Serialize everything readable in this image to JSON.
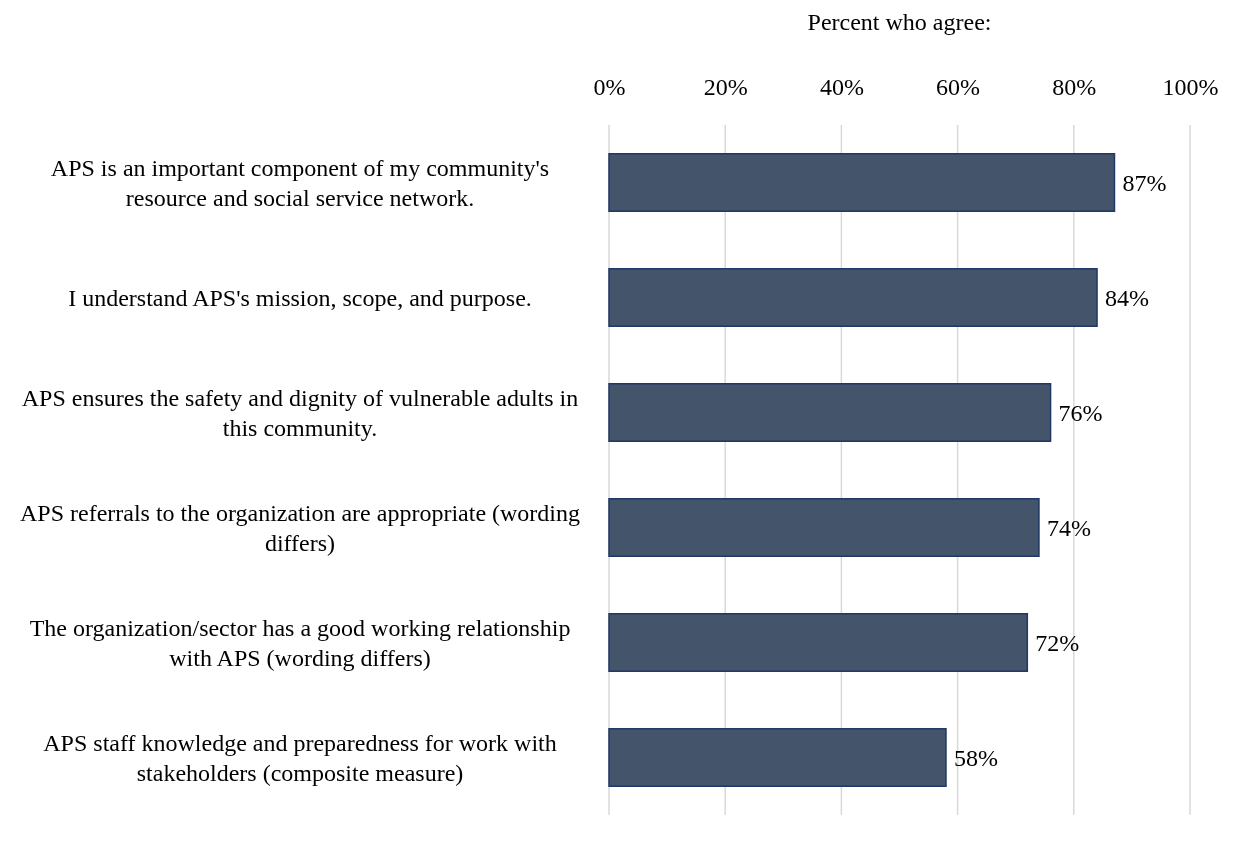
{
  "chart_data": {
    "type": "bar",
    "orientation": "horizontal",
    "title": "Percent who agree:",
    "categories": [
      "APS is an important component of my community's resource and social service network.",
      "I understand APS's mission, scope, and purpose.",
      "APS ensures the safety and dignity of vulnerable adults in this community.",
      "APS referrals to the organization are appropriate (wording differs)",
      "The organization/sector has a good working relationship with APS (wording differs)",
      "APS staff knowledge and preparedness for work with stakeholders (composite measure)"
    ],
    "values": [
      87,
      84,
      76,
      74,
      72,
      58
    ],
    "value_labels": [
      "87%",
      "84%",
      "76%",
      "74%",
      "72%",
      "58%"
    ],
    "color": "#44546a",
    "xlim": [
      0,
      100
    ],
    "xticks": [
      {
        "value": 0,
        "label": "0%"
      },
      {
        "value": 20,
        "label": "20%"
      },
      {
        "value": 40,
        "label": "40%"
      },
      {
        "value": 60,
        "label": "60%"
      },
      {
        "value": 80,
        "label": "80%"
      },
      {
        "value": 100,
        "label": "100%"
      }
    ],
    "grid": "x"
  }
}
